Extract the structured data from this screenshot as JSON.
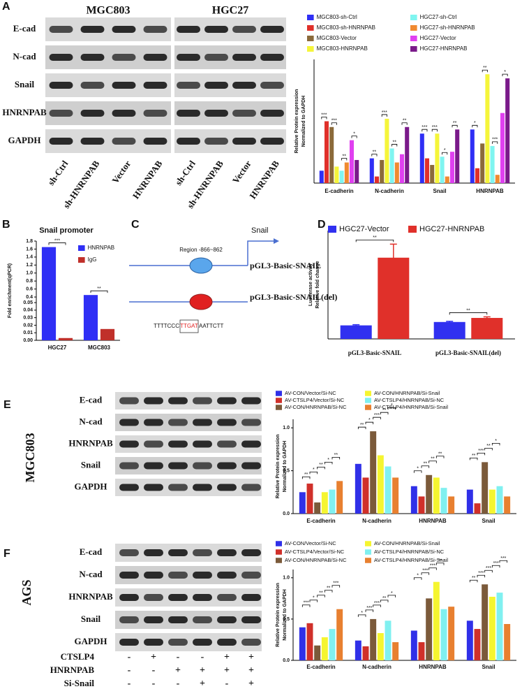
{
  "panel_labels": [
    "A",
    "B",
    "C",
    "D",
    "E",
    "F"
  ],
  "blots": [
    {
      "groups": [
        "MGC803",
        "HGC27"
      ],
      "rows": [
        "E-cad",
        "N-cad",
        "Snail",
        "HNRNPAB",
        "GAPDH"
      ],
      "lanes": [
        "sh-Ctrl",
        "sh-HNRNPAB",
        "Vector",
        "HNRNPAB",
        "sh-Ctrl",
        "sh-HNRNPAB",
        "Vector",
        "HNRNPAB"
      ]
    },
    {
      "cell_line": "MGC803",
      "rows": [
        "E-cad",
        "N-cad",
        "HNRNPAB",
        "Snail",
        "GAPDH"
      ]
    },
    {
      "cell_line": "AGS",
      "rows": [
        "E-cad",
        "N-cad",
        "HNRNPAB",
        "Snail",
        "GAPDH"
      ],
      "conditions": [
        {
          "name": "CTSLP4",
          "signs": [
            "-",
            "+",
            "-",
            "-",
            "+",
            "+"
          ]
        },
        {
          "name": "HNRNPAB",
          "signs": [
            "-",
            "-",
            "+",
            "+",
            "+",
            "+"
          ]
        },
        {
          "name": "Si-Snail",
          "signs": [
            "-",
            "-",
            "-",
            "+",
            "-",
            "+"
          ]
        }
      ]
    }
  ],
  "diagram": {
    "gene": "Snail",
    "region": "Region -866~862",
    "construct": "pGL3-Basic-SNAIL",
    "construct_del": "pGL3-Basic-SNAIL(del)",
    "sequence": [
      "TTTTCCC",
      "TTGAT",
      "AATTCTT"
    ]
  },
  "chart_data": [
    {
      "type": "bar",
      "ylabel": [
        "Relative Protein expression",
        "Normalized to GAPDH"
      ],
      "categories": [
        "E-cadherin",
        "N-cadherin",
        "Snail",
        "HNRNPAB"
      ],
      "ylim": [
        0,
        1.5
      ],
      "series": [
        {
          "name": "MGC803-sh-Ctrl",
          "color": "#2f2ff5",
          "values": [
            0.15,
            0.3,
            0.6,
            0.65
          ]
        },
        {
          "name": "MGC803-sh-HNRNPAB",
          "color": "#e0302a",
          "values": [
            0.75,
            0.08,
            0.3,
            0.18
          ]
        },
        {
          "name": "MGC803-Vector",
          "color": "#8b6a3a",
          "values": [
            0.68,
            0.28,
            0.22,
            0.48
          ]
        },
        {
          "name": "MGC803-HNRNPAB",
          "color": "#f5f53a",
          "values": [
            0.2,
            0.78,
            0.6,
            1.32
          ]
        },
        {
          "name": "HGC27-sh-Ctrl",
          "color": "#7ff5f0",
          "values": [
            0.15,
            0.42,
            0.32,
            0.45
          ]
        },
        {
          "name": "HGC27-sh-HNRNPAB",
          "color": "#f08a30",
          "values": [
            0.25,
            0.25,
            0.08,
            0.1
          ]
        },
        {
          "name": "HGC27-Vector",
          "color": "#e040f0",
          "values": [
            0.52,
            0.35,
            0.38,
            0.85
          ]
        },
        {
          "name": "HGC27-HNRNPAB",
          "color": "#7a1a8a",
          "values": [
            0.28,
            0.68,
            0.65,
            1.27
          ]
        }
      ],
      "sig": [
        [
          "***",
          "***",
          "**",
          "*"
        ],
        [
          "**",
          "***",
          "**",
          "**"
        ],
        [
          "***",
          "***",
          "*",
          "**"
        ],
        [
          "*",
          "**",
          "***",
          "*"
        ]
      ]
    },
    {
      "type": "bar",
      "title": "Snail promoter",
      "ylabel": [
        "Fold enrichment(qPCR)"
      ],
      "categories": [
        "HGC27",
        "MGC803"
      ],
      "ylim": [
        0,
        1.8
      ],
      "ybreak": [
        0.05,
        0.4
      ],
      "yticks": [
        {
          "value": 0,
          "label": "0.00"
        },
        0.01,
        0.02,
        0.03,
        0.04,
        0.05,
        0.4,
        0.6,
        0.8,
        {
          "value": 1.0,
          "label": "1.0"
        },
        1.2,
        1.4,
        1.6,
        1.8
      ],
      "series": [
        {
          "name": "HNRNPAB",
          "color": "#2f2ff5",
          "values": [
            1.65,
            0.45
          ]
        },
        {
          "name": "IgG",
          "color": "#c0302a",
          "values": [
            0.003,
            0.015
          ]
        }
      ],
      "sig": [
        [
          "***"
        ],
        [
          "**"
        ]
      ]
    },
    {
      "type": "bar",
      "ylabel": [
        "Luciferase activity",
        "Relative fold change"
      ],
      "categories": [
        "pGL3-Basic-SNAIL",
        "pGL3-Basic-SNAIL(del)"
      ],
      "ylim": [
        0,
        8
      ],
      "series": [
        {
          "name": "HGC27-Vector",
          "color": "#3030f0",
          "values": [
            1.0,
            1.25
          ],
          "errors": [
            0.05,
            0.05
          ]
        },
        {
          "name": "HGC27-HNRNPAB",
          "color": "#e0302a",
          "values": [
            6.0,
            1.55
          ],
          "errors": [
            1.0,
            0.08
          ]
        }
      ],
      "sig": [
        [
          "**"
        ],
        [
          "**"
        ]
      ]
    },
    {
      "type": "bar",
      "ylabel": [
        "Relative Protein expression",
        "Normalized to GAPDH"
      ],
      "categories": [
        "E-cadherin",
        "N-cadherin",
        "HNRNPAB",
        "Snail"
      ],
      "ylim": [
        0,
        1.1
      ],
      "yticks": [
        {
          "value": 0,
          "label": "0.0"
        },
        0.5,
        {
          "value": 1,
          "label": "1.0"
        }
      ],
      "series": [
        {
          "name": "AV-CON/Vector/Si-NC",
          "color": "#3030e8",
          "values": [
            0.25,
            0.58,
            0.32,
            0.28
          ]
        },
        {
          "name": "AV-CTSLP4/Vector/Si-NC",
          "color": "#d0302a",
          "values": [
            0.35,
            0.42,
            0.2,
            0.12
          ]
        },
        {
          "name": "AV-CON/HNRNPAB/Si-NC",
          "color": "#7b5a3a",
          "values": [
            0.13,
            0.96,
            0.45,
            0.6
          ]
        },
        {
          "name": "AV-CON/HNRNPAB/Si-Snail",
          "color": "#f5f530",
          "values": [
            0.25,
            0.68,
            0.42,
            0.28
          ]
        },
        {
          "name": "AV-CTSLP4/HNRNPAB/Si-NC",
          "color": "#80f0f0",
          "values": [
            0.28,
            0.55,
            0.3,
            0.32
          ]
        },
        {
          "name": "AV-CTSLP4/HNRNPAB/Si-Snail",
          "color": "#e88030",
          "values": [
            0.38,
            0.42,
            0.2,
            0.2
          ]
        }
      ],
      "sig": [
        [
          "**",
          "*",
          "**",
          "*",
          "**"
        ],
        [
          "**",
          "*",
          "***",
          "**",
          "*"
        ],
        [
          "*",
          "**",
          "**",
          "**"
        ],
        [
          "**",
          "***",
          "**",
          "*"
        ]
      ]
    },
    {
      "type": "bar",
      "ylabel": [
        "Relative Protein expression",
        "Normalized to GAPDH"
      ],
      "categories": [
        "E-cadherin",
        "N-cadherin",
        "HNRNPAB",
        "Snail"
      ],
      "ylim": [
        0,
        1.1
      ],
      "yticks": [
        {
          "value": 0,
          "label": "0.0"
        },
        0.5,
        {
          "value": 1,
          "label": "1.0"
        }
      ],
      "series": [
        {
          "name": "AV-CON/Vector/Si-NC",
          "color": "#3030e8",
          "values": [
            0.4,
            0.24,
            0.36,
            0.48
          ]
        },
        {
          "name": "AV-CTSLP4/Vector/Si-NC",
          "color": "#d0302a",
          "values": [
            0.45,
            0.17,
            0.22,
            0.38
          ]
        },
        {
          "name": "AV-CON/HNRNPAB/Si-NC",
          "color": "#7b5a3a",
          "values": [
            0.18,
            0.5,
            0.75,
            0.92
          ]
        },
        {
          "name": "AV-CON/HNRNPAB/Si-Snail",
          "color": "#f5f530",
          "values": [
            0.28,
            0.33,
            0.95,
            0.77
          ]
        },
        {
          "name": "AV-CTSLP4/HNRNPAB/Si-NC",
          "color": "#80f0f0",
          "values": [
            0.38,
            0.48,
            0.62,
            0.82
          ]
        },
        {
          "name": "AV-CTSLP4/HNRNPAB/Si-Snail",
          "color": "#e88030",
          "values": [
            0.62,
            0.22,
            0.65,
            0.44
          ]
        }
      ],
      "sig": [
        [
          "***",
          "*",
          "**",
          "**",
          "***"
        ],
        [
          "*",
          "***",
          "***",
          "**",
          "*"
        ],
        [
          "*",
          "***",
          "***",
          "**"
        ],
        [
          "**",
          "***",
          "***",
          "***",
          "***"
        ]
      ]
    }
  ]
}
